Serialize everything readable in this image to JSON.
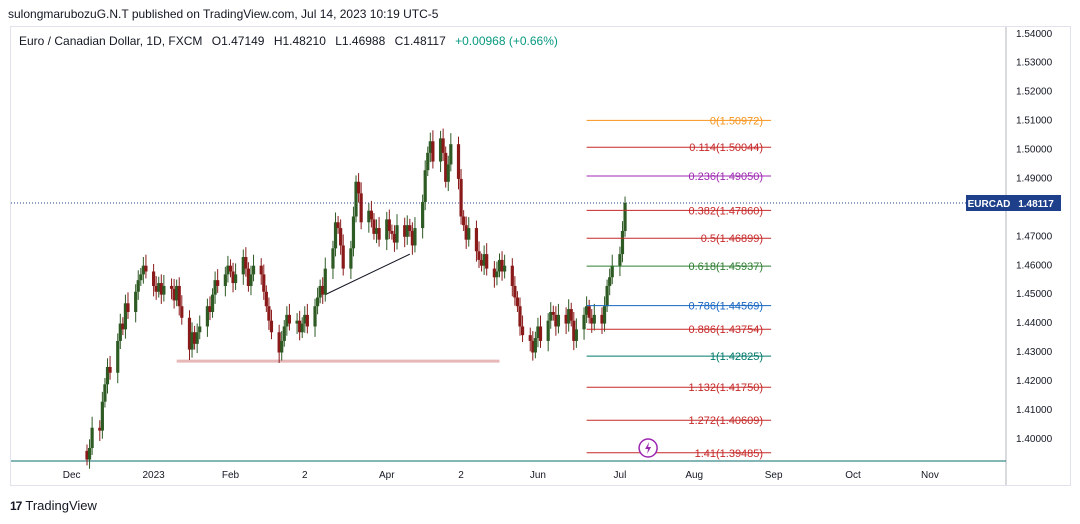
{
  "header": {
    "publish_line": "sulongmarubozuG.N.T published on TradingView.com, Jul 14, 2023 10:19 UTC-5"
  },
  "legend": {
    "symbol": "Euro / Canadian Dollar, 1D, FXCM",
    "open": "O1.47149",
    "high": "H1.48210",
    "low": "L1.46988",
    "close": "C1.48117",
    "change": "+0.00968 (+0.66%)"
  },
  "footer": {
    "brand": "TradingView",
    "logo_text": "17"
  },
  "colors": {
    "up": "#2e5a24",
    "down": "#8a1a1a",
    "background": "#ffffff",
    "price_tag": "#1e3f8a"
  },
  "chart_data": {
    "type": "candlestick",
    "symbol": "EURCAD",
    "interval": "1D",
    "ylim": [
      1.392,
      1.542
    ],
    "y_ticks": [
      "1.54000",
      "1.53000",
      "1.52000",
      "1.51000",
      "1.50000",
      "1.49000",
      "1.48000",
      "1.47000",
      "1.46000",
      "1.45000",
      "1.44000",
      "1.43000",
      "1.42000",
      "1.41000",
      "1.40000"
    ],
    "y_tick_values": [
      1.54,
      1.53,
      1.52,
      1.51,
      1.5,
      1.49,
      1.48,
      1.47,
      1.46,
      1.45,
      1.44,
      1.43,
      1.42,
      1.41,
      1.4
    ],
    "x_axis": {
      "start": "2022-11-21",
      "end": "2023-11-10",
      "ticks": [
        {
          "label": "Dec",
          "date": "2022-12-01"
        },
        {
          "label": "2023",
          "date": "2023-01-02"
        },
        {
          "label": "Feb",
          "date": "2023-02-01"
        },
        {
          "label": "2",
          "date": "2023-03-02"
        },
        {
          "label": "Apr",
          "date": "2023-04-03"
        },
        {
          "label": "2",
          "date": "2023-05-02"
        },
        {
          "label": "Jun",
          "date": "2023-06-01"
        },
        {
          "label": "Jul",
          "date": "2023-07-03"
        },
        {
          "label": "Aug",
          "date": "2023-08-01"
        },
        {
          "label": "Sep",
          "date": "2023-09-01"
        },
        {
          "label": "Oct",
          "date": "2023-10-02"
        },
        {
          "label": "Nov",
          "date": "2023-11-01"
        }
      ]
    },
    "last_price": {
      "label": "EURCAD",
      "value": "1.48117",
      "y": 1.48117
    },
    "closes": [
      1.3925,
      1.3965,
      1.4035,
      1.4025,
      1.4125,
      1.4185,
      1.4245,
      1.4225,
      1.4335,
      1.4395,
      1.4375,
      1.4465,
      1.4435,
      1.4505,
      1.4545,
      1.4565,
      1.4595,
      1.4575,
      1.4525,
      1.4505,
      1.4535,
      1.4495,
      1.4525,
      1.4515,
      1.4475,
      1.4525,
      1.4455,
      1.4415,
      1.4305,
      1.4365,
      1.4325,
      1.4365,
      1.4385,
      1.4455,
      1.4435,
      1.4495,
      1.4545,
      1.4525,
      1.4565,
      1.4595,
      1.4575,
      1.4535,
      1.4565,
      1.4625,
      1.4585,
      1.4525,
      1.4565,
      1.4595,
      1.4565,
      1.4505,
      1.4455,
      1.4405,
      1.4365,
      1.4295,
      1.4335,
      1.4385,
      1.4425,
      1.4395,
      1.4405,
      1.4365,
      1.4395,
      1.4425,
      1.4385,
      1.4455,
      1.4485,
      1.4525,
      1.4495,
      1.4585,
      1.4655,
      1.4745,
      1.4725,
      1.4665,
      1.4585,
      1.4655,
      1.4765,
      1.4885,
      1.4845,
      1.4745,
      1.4785,
      1.4755,
      1.4705,
      1.4725,
      1.4685,
      1.4755,
      1.4715,
      1.4705,
      1.4675,
      1.4735,
      1.4695,
      1.4735,
      1.4715,
      1.4665,
      1.4725,
      1.4815,
      1.4925,
      1.4985,
      1.5025,
      1.4955,
      1.5035,
      1.4985,
      1.4885,
      1.4945,
      1.5015,
      1.4895,
      1.4765,
      1.4735,
      1.4685,
      1.4725,
      1.4645,
      1.4615,
      1.4595,
      1.4635,
      1.4585,
      1.4555,
      1.4575,
      1.4615,
      1.4575,
      1.4595,
      1.4525,
      1.4485,
      1.4455,
      1.4385,
      1.4355,
      1.4335,
      1.4295,
      1.4345,
      1.4385,
      1.4335,
      1.4405,
      1.4435,
      1.4425,
      1.4385,
      1.4425,
      1.4395,
      1.4445,
      1.4405,
      1.4335,
      1.4375,
      1.4425,
      1.4455,
      1.4415,
      1.4395,
      1.4425,
      1.4395,
      1.4455,
      1.4525,
      1.4555,
      1.4595,
      1.4635,
      1.4715,
      1.4812
    ],
    "fib_levels": [
      {
        "ratio": "0",
        "price": 1.50972,
        "label": "0(1.50972)",
        "color": "#f7931a"
      },
      {
        "ratio": "0.114",
        "price": 1.50044,
        "label": "0.114(1.50044)",
        "color": "#c62828"
      },
      {
        "ratio": "0.236",
        "price": 1.4905,
        "label": "0.236(1.49050)",
        "color": "#9c27b0"
      },
      {
        "ratio": "0.382",
        "price": 1.4786,
        "label": "0.382(1.47860)",
        "color": "#c62828"
      },
      {
        "ratio": "0.5",
        "price": 1.46899,
        "label": "0.5(1.46899)",
        "color": "#c62828"
      },
      {
        "ratio": "0.618",
        "price": 1.45937,
        "label": "0.618(1.45937)",
        "color": "#2e7d32"
      },
      {
        "ratio": "0.786",
        "price": 1.44569,
        "label": "0.786(1.44569)",
        "color": "#1565c0"
      },
      {
        "ratio": "0.886",
        "price": 1.43754,
        "label": "0.886(1.43754)",
        "color": "#c62828"
      },
      {
        "ratio": "1",
        "price": 1.42825,
        "label": "1(1.42825)",
        "color": "#00796b"
      },
      {
        "ratio": "1.132",
        "price": 1.4175,
        "label": "1.132(1.41750)",
        "color": "#c62828"
      },
      {
        "ratio": "1.272",
        "price": 1.40609,
        "label": "1.272(1.40609)",
        "color": "#c62828"
      },
      {
        "ratio": "1.41",
        "price": 1.39485,
        "label": "1.41(1.39485)",
        "color": "#c62828"
      }
    ],
    "trendline": {
      "from": {
        "date": "2023-03-10",
        "price": 1.4495
      },
      "to": {
        "date": "2023-04-12",
        "price": 1.4635
      },
      "color": "#131722"
    },
    "support_line": {
      "from": {
        "date": "2023-01-11",
        "price": 1.4265
      },
      "to": {
        "date": "2023-05-17",
        "price": 1.4265
      },
      "color": "#e6b8b8"
    },
    "fib_range": {
      "from": "2023-06-20",
      "to": "2023-08-31"
    },
    "event_marker": {
      "date": "2023-07-14",
      "icon": "lightning-icon",
      "color": "#9c27b0"
    }
  }
}
